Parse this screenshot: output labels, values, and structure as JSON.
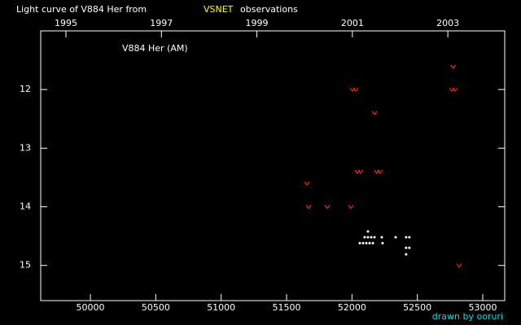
{
  "chart_data": {
    "type": "scatter",
    "title": "Light curve of V884 Her from",
    "title_highlight": "VSNET",
    "title_suffix": "observations",
    "annotation": "V884 Her (AM)",
    "credit": "drawn by ooruri",
    "xlim": [
      49620,
      53168
    ],
    "ylim": [
      15.6,
      11.0
    ],
    "xticks": [
      50000,
      50500,
      51000,
      51500,
      52000,
      52500,
      53000
    ],
    "x2ticks": [
      {
        "value": 49813,
        "label": "1995"
      },
      {
        "value": 50543,
        "label": "1997"
      },
      {
        "value": 51273,
        "label": "1999"
      },
      {
        "value": 52003,
        "label": "2001"
      },
      {
        "value": 52733,
        "label": "2003"
      }
    ],
    "yticks": [
      12,
      13,
      14,
      15
    ],
    "series": [
      {
        "color": "#ff2020",
        "marker": "v",
        "x": [
          52775,
          52004,
          52029,
          52763,
          52788,
          52172,
          52041,
          52066,
          52191,
          52215,
          51655,
          51668,
          51811,
          51991,
          52819
        ],
        "values": [
          11.61,
          12.0,
          12.0,
          12.0,
          12.0,
          12.4,
          13.4,
          13.4,
          13.4,
          13.4,
          13.6,
          14.0,
          14.0,
          14.0,
          15.0
        ]
      },
      {
        "color": "#ffffff",
        "marker": "dot",
        "x": [
          52122,
          52097,
          52122,
          52147,
          52172,
          52228,
          52334,
          52414,
          52439,
          52060,
          52085,
          52110,
          52135,
          52160,
          52234,
          52414,
          52439,
          52414
        ],
        "values": [
          14.42,
          14.52,
          14.52,
          14.52,
          14.52,
          14.52,
          14.52,
          14.52,
          14.52,
          14.62,
          14.62,
          14.62,
          14.62,
          14.62,
          14.62,
          14.7,
          14.7,
          14.81
        ]
      }
    ]
  }
}
